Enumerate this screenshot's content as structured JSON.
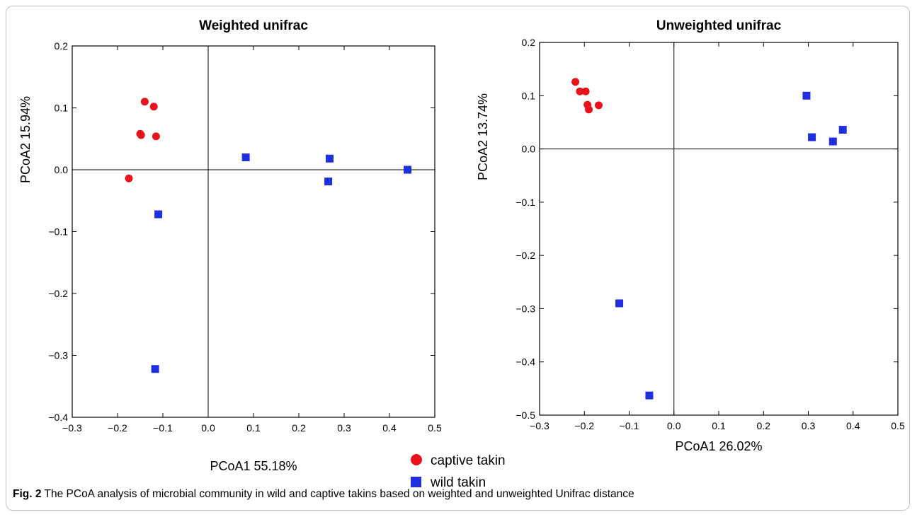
{
  "chart_data": [
    {
      "type": "scatter",
      "title": "Weighted unifrac",
      "xlabel": "PCoA1 55.18%",
      "ylabel": "PCoA2 15.94%",
      "xlim": [
        -0.3,
        0.5
      ],
      "ylim": [
        -0.4,
        0.2
      ],
      "xticks": [
        "−0.3",
        "−0.2",
        "−0.1",
        "0.0",
        "0.1",
        "0.2",
        "0.3",
        "0.4",
        "0.5"
      ],
      "yticks": [
        "0.2",
        "0.1",
        "0.0",
        "−0.1",
        "−0.2",
        "−0.3",
        "−0.4"
      ],
      "series": [
        {
          "name": "captive takin",
          "marker": "circle",
          "color": "#e8131b",
          "points": [
            [
              -0.14,
              0.11
            ],
            [
              -0.12,
              0.102
            ],
            [
              -0.15,
              0.058
            ],
            [
              -0.148,
              0.056
            ],
            [
              -0.115,
              0.054
            ],
            [
              -0.175,
              -0.014
            ]
          ]
        },
        {
          "name": "wild takin",
          "marker": "square",
          "color": "#1f2fe0",
          "points": [
            [
              -0.11,
              -0.072
            ],
            [
              -0.117,
              -0.322
            ],
            [
              0.083,
              0.02
            ],
            [
              0.268,
              0.018
            ],
            [
              0.265,
              -0.019
            ],
            [
              0.44,
              0.0
            ]
          ]
        }
      ]
    },
    {
      "type": "scatter",
      "title": "Unweighted unifrac",
      "xlabel": "PCoA1 26.02%",
      "ylabel": "PCoA2 13.74%",
      "xlim": [
        -0.3,
        0.5
      ],
      "ylim": [
        -0.5,
        0.2
      ],
      "xticks": [
        "−0.3",
        "−0.2",
        "−0.1",
        "0.0",
        "0.1",
        "0.2",
        "0.3",
        "0.4",
        "0.5"
      ],
      "yticks": [
        "0.2",
        "0.1",
        "0.0",
        "−0.1",
        "−0.2",
        "−0.3",
        "−0.4",
        "−0.5"
      ],
      "series": [
        {
          "name": "captive takin",
          "marker": "circle",
          "color": "#e8131b",
          "points": [
            [
              -0.22,
              0.126
            ],
            [
              -0.21,
              0.108
            ],
            [
              -0.197,
              0.108
            ],
            [
              -0.193,
              0.083
            ],
            [
              -0.19,
              0.074
            ],
            [
              -0.168,
              0.082
            ]
          ]
        },
        {
          "name": "wild takin",
          "marker": "square",
          "color": "#1f2fe0",
          "points": [
            [
              0.296,
              0.1
            ],
            [
              0.308,
              0.022
            ],
            [
              0.355,
              0.014
            ],
            [
              0.377,
              0.036
            ],
            [
              -0.122,
              -0.29
            ],
            [
              -0.055,
              -0.463
            ]
          ]
        }
      ]
    }
  ],
  "legend": {
    "placement": "bottom-center",
    "items": [
      {
        "label": "captive takin",
        "color": "#e8131b",
        "marker": "circle"
      },
      {
        "label": "wild takin",
        "color": "#1f2fe0",
        "marker": "square"
      }
    ]
  },
  "caption": {
    "label": "Fig. 2",
    "text": "The PCoA analysis of microbial community in wild and captive takins based on weighted and unweighted Unifrac distance"
  }
}
